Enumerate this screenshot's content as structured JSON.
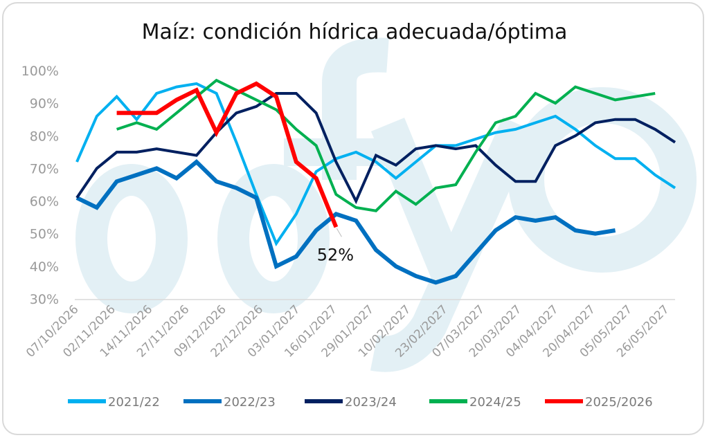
{
  "chart_data": {
    "type": "line",
    "title": "Maíz: condición hídrica adecuada/óptima",
    "xlabel": "",
    "ylabel": "",
    "ylim": [
      30,
      100
    ],
    "yticks": [
      "30%",
      "40%",
      "50%",
      "60%",
      "70%",
      "80%",
      "90%",
      "100%"
    ],
    "yticks_values": [
      30,
      40,
      50,
      60,
      70,
      80,
      90,
      100
    ],
    "xtick_labels": [
      "07/10/2026",
      "02/11/2026",
      "14/11/2026",
      "27/11/2026",
      "09/12/2026",
      "22/12/2026",
      "03/01/2027",
      "16/01/2027",
      "29/01/2027",
      "10/02/2027",
      "23/02/2027",
      "07/03/2027",
      "20/03/2027",
      "04/04/2027",
      "20/04/2027",
      "05/05/2027",
      "26/05/2027"
    ],
    "n_points": 31,
    "grid": false,
    "legend_position": "bottom",
    "watermark": "ofyo",
    "series": [
      {
        "name": "2021/22",
        "color": "#00b0f0",
        "width": 4,
        "start": 0,
        "values": [
          72,
          86,
          92,
          85,
          93,
          95,
          96,
          93,
          78,
          62,
          47,
          56,
          69,
          73,
          75,
          72,
          67,
          72,
          77,
          77,
          79,
          81,
          82,
          84,
          86,
          82,
          77,
          73,
          73,
          68,
          64
        ]
      },
      {
        "name": "2022/23",
        "color": "#0070c0",
        "width": 6,
        "start": 0,
        "values": [
          61,
          58,
          66,
          68,
          70,
          67,
          72,
          66,
          64,
          61,
          40,
          43,
          51,
          56,
          54,
          45,
          40,
          37,
          35,
          37,
          44,
          51,
          55,
          54,
          55,
          51,
          50,
          51
        ]
      },
      {
        "name": "2023/24",
        "color": "#002060",
        "width": 4,
        "start": 0,
        "values": [
          61,
          70,
          75,
          75,
          76,
          75,
          74,
          81,
          87,
          89,
          93,
          93,
          87,
          72,
          60,
          74,
          71,
          76,
          77,
          76,
          77,
          71,
          66,
          66,
          77,
          80,
          84,
          85,
          85,
          82,
          78
        ]
      },
      {
        "name": "2024/25",
        "color": "#00b050",
        "width": 4,
        "start": 2,
        "values": [
          82,
          84,
          82,
          87,
          92,
          97,
          94,
          91,
          88,
          82,
          77,
          62,
          58,
          57,
          63,
          59,
          64,
          65,
          75,
          84,
          86,
          93,
          90,
          95,
          93,
          91,
          92,
          93
        ]
      },
      {
        "name": "2025/2026",
        "color": "#ff0000",
        "width": 6,
        "start": 2,
        "values": [
          87,
          87,
          87,
          91,
          94,
          81,
          93,
          96,
          92,
          72,
          67,
          52
        ]
      }
    ],
    "annotations": [
      {
        "series": "2025/2026",
        "text": "52%",
        "value": 52
      }
    ]
  }
}
